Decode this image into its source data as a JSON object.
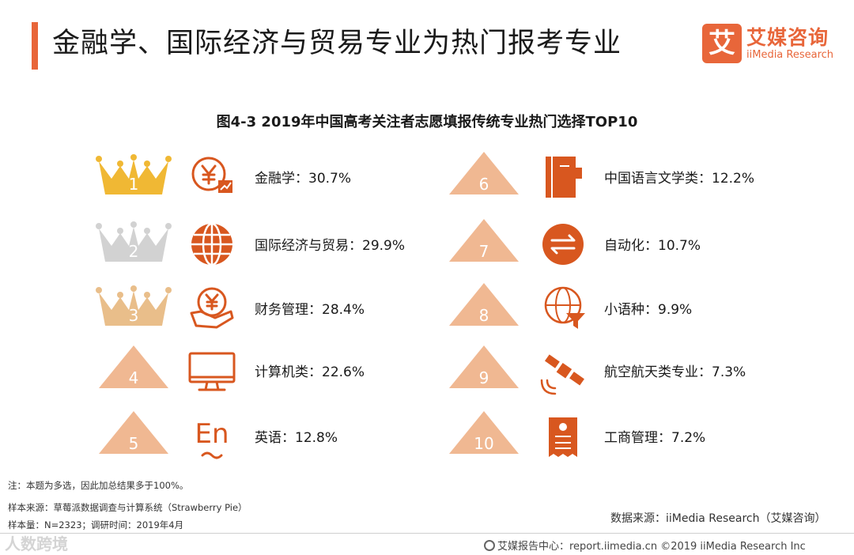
{
  "header": {
    "title": "金融学、国际经济与贸易专业为热门报考专业"
  },
  "logo": {
    "mark": "艾",
    "name_cn": "艾媒咨询",
    "name_en": "iiMedia Research"
  },
  "colors": {
    "accent": "#e8663a",
    "rank_shape": "#f0b892",
    "rank_shape_dark": "#e89e70",
    "gold": "#f0b834",
    "silver": "#d2d2d2",
    "bronze": "#e9be8a",
    "icon": "#d8571f"
  },
  "chart_data": {
    "type": "table",
    "title": "图4-3 2019年中国高考关注者志愿填报传统专业热门选择TOP10",
    "items": [
      {
        "rank": "1",
        "name": "金融学",
        "value": 30.7,
        "label": "金融学：30.7%",
        "icon": "yuan-growth-icon",
        "marker": "gold-crown"
      },
      {
        "rank": "2",
        "name": "国际经济与贸易",
        "value": 29.9,
        "label": "国际经济与贸易：29.9%",
        "icon": "globe-icon",
        "marker": "silver-crown"
      },
      {
        "rank": "3",
        "name": "财务管理",
        "value": 28.4,
        "label": "财务管理：28.4%",
        "icon": "yuan-hand-icon",
        "marker": "bronze-crown"
      },
      {
        "rank": "4",
        "name": "计算机类",
        "value": 22.6,
        "label": "计算机类：22.6%",
        "icon": "monitor-icon",
        "marker": "triangle"
      },
      {
        "rank": "5",
        "name": "英语",
        "value": 12.8,
        "label": "英语：12.8%",
        "icon": "english-icon",
        "marker": "triangle"
      },
      {
        "rank": "6",
        "name": "中国语言文学类",
        "value": 12.2,
        "label": "中国语言文学类：12.2%",
        "icon": "book-icon",
        "marker": "triangle"
      },
      {
        "rank": "7",
        "name": "自动化",
        "value": 10.7,
        "label": "自动化：10.7%",
        "icon": "swap-arrows-icon",
        "marker": "triangle"
      },
      {
        "rank": "8",
        "name": "小语种",
        "value": 9.9,
        "label": "小语种：9.9%",
        "icon": "globe-filter-icon",
        "marker": "triangle"
      },
      {
        "rank": "9",
        "name": "航空航天类专业",
        "value": 7.3,
        "label": "航空航天类专业：7.3%",
        "icon": "satellite-icon",
        "marker": "triangle"
      },
      {
        "rank": "10",
        "name": "工商管理",
        "value": 7.2,
        "label": "工商管理：7.2%",
        "icon": "document-icon",
        "marker": "triangle"
      }
    ],
    "english_icon_text": "En"
  },
  "notes": {
    "note": "注：本题为多选，因此加总结果多于100%。",
    "sample_source": "样本来源：草莓派数据调查与计算系统（Strawberry Pie）",
    "sample_size": "样本量：N=2323；调研时间：2019年4月"
  },
  "source": "数据来源：iiMedia Research（艾媒咨询）",
  "footer": {
    "text": "艾媒报告中心：report.iimedia.cn  ©2019  iiMedia Research  Inc"
  },
  "watermark": "人数跨境"
}
